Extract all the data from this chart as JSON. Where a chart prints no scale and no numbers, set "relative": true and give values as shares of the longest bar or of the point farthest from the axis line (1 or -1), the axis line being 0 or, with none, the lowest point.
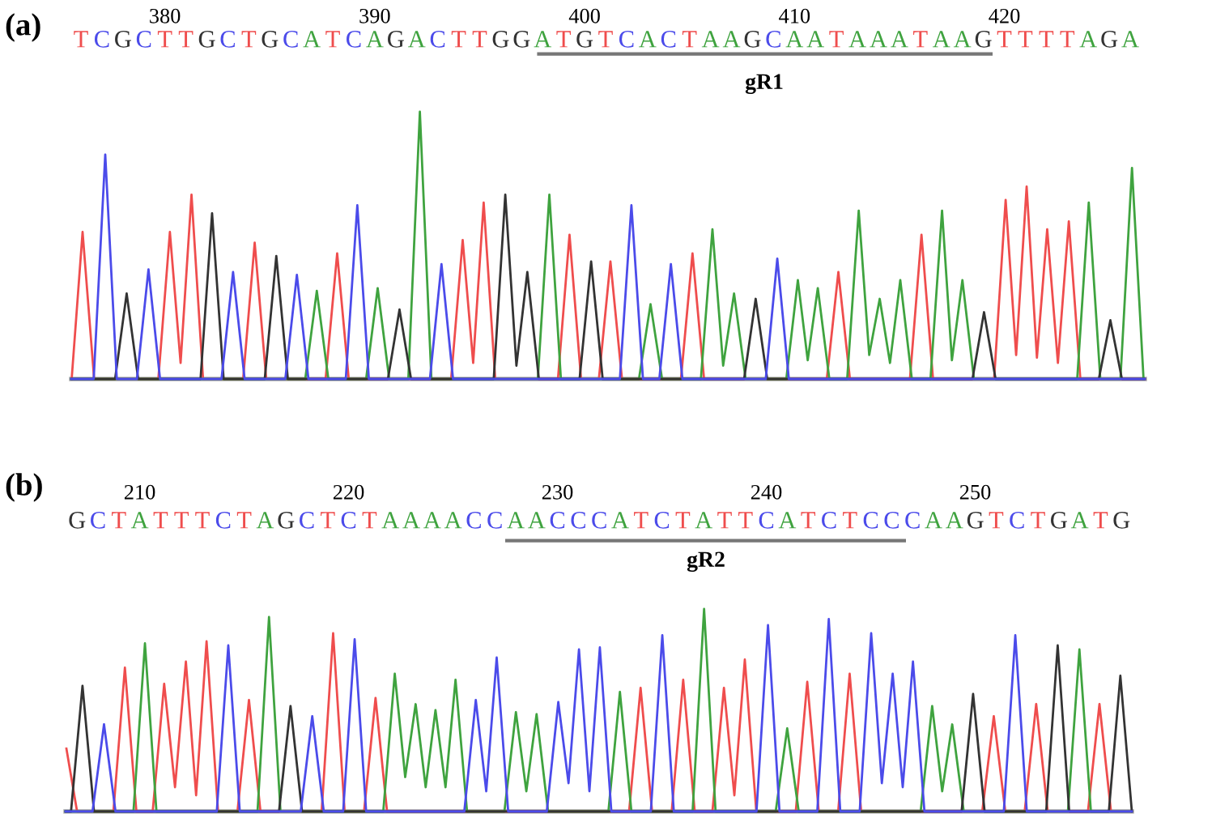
{
  "chart_data": [
    {
      "type": "line",
      "title": "(a)",
      "relative": true,
      "xlim": [
        375.54,
        426.69
      ],
      "xticks": [
        380,
        390,
        400,
        410,
        420
      ],
      "annotations": [
        "T",
        "C",
        "G",
        "C",
        "T",
        "T",
        "G",
        "C",
        "T",
        "G",
        "C",
        "A",
        "T",
        "C",
        "A",
        "G",
        "A",
        "C",
        "T",
        "T",
        "G",
        "G",
        "A",
        "T",
        "G",
        "T",
        "C",
        "A",
        "C",
        "T",
        "A",
        "A",
        "G",
        "C",
        "A",
        "A",
        "T",
        "A",
        "A",
        "A",
        "T",
        "A",
        "A",
        "G",
        "T",
        "T",
        "T",
        "T",
        "A",
        "G",
        "A",
        "gR1"
      ],
      "series": [
        {
          "color": "#ef4d4d",
          "x": [
            375.56,
            376.08,
            376.63,
            379.69,
            380.24,
            380.75,
            381.27,
            381.82,
            383.73,
            384.28,
            384.83,
            387.66,
            388.21,
            388.76,
            393.64,
            394.19,
            394.69,
            395.19,
            395.74,
            398.73,
            399.28,
            399.83,
            400.68,
            401.23,
            401.78,
            404.59,
            405.14,
            405.69,
            411.54,
            412.09,
            412.64,
            415.5,
            416.05,
            416.6,
            419.51,
            420.06,
            420.56,
            421.06,
            421.55,
            422.04,
            422.55,
            423.07,
            423.62,
            426.69
          ],
          "values": [
            0,
            0.55,
            0,
            0,
            0.55,
            0.06,
            0.69,
            0,
            0,
            0.51,
            0,
            0,
            0.47,
            0,
            0,
            0.52,
            0.06,
            0.66,
            0,
            0,
            0.54,
            0,
            0,
            0.44,
            0,
            0,
            0.47,
            0,
            0,
            0.4,
            0,
            0,
            0.54,
            0,
            0,
            0.67,
            0.09,
            0.72,
            0.08,
            0.56,
            0.06,
            0.59,
            0,
            0
          ]
        },
        {
          "color": "#3fa33f",
          "x": [
            375.54,
            386.69,
            387.24,
            387.79,
            389.59,
            390.14,
            390.69,
            391.6,
            392.15,
            392.7,
            397.77,
            398.32,
            398.87,
            402.59,
            403.14,
            403.69,
            405.54,
            406.09,
            406.6,
            407.12,
            407.67,
            409.61,
            410.16,
            410.63,
            411.11,
            411.66,
            412.51,
            413.06,
            413.56,
            414.06,
            414.55,
            415.04,
            415.59,
            416.48,
            417.03,
            417.5,
            418.0,
            418.55,
            423.47,
            424.02,
            424.57,
            425.53,
            426.08,
            426.63
          ],
          "values": [
            0,
            0,
            0.33,
            0,
            0,
            0.34,
            0,
            0,
            1,
            0,
            0,
            0.69,
            0,
            0,
            0.28,
            0,
            0,
            0.56,
            0.05,
            0.32,
            0,
            0,
            0.37,
            0.07,
            0.34,
            0,
            0,
            0.63,
            0.09,
            0.3,
            0.06,
            0.37,
            0,
            0,
            0.63,
            0.07,
            0.37,
            0,
            0,
            0.66,
            0,
            0,
            0.79,
            0
          ]
        },
        {
          "color": "#333333",
          "x": [
            375.54,
            377.63,
            378.18,
            378.73,
            381.7,
            382.25,
            382.8,
            384.76,
            385.31,
            385.86,
            390.63,
            391.18,
            391.73,
            395.67,
            396.22,
            396.75,
            397.27,
            397.82,
            399.76,
            400.31,
            400.86,
            407.6,
            408.15,
            408.7,
            418.48,
            419.03,
            419.58,
            424.5,
            425.05,
            425.6,
            426.69
          ],
          "values": [
            0,
            0,
            0.32,
            0,
            0,
            0.62,
            0,
            0,
            0.46,
            0,
            0,
            0.26,
            0,
            0,
            0.69,
            0.05,
            0.4,
            0,
            0,
            0.44,
            0,
            0,
            0.3,
            0,
            0,
            0.25,
            0,
            0,
            0.22,
            0,
            0
          ]
        },
        {
          "color": "#4b4bea",
          "x": [
            375.54,
            376.61,
            377.16,
            377.71,
            378.67,
            379.22,
            379.77,
            382.7,
            383.25,
            383.8,
            385.74,
            386.29,
            386.84,
            388.62,
            389.17,
            389.72,
            392.63,
            393.18,
            393.73,
            401.68,
            402.23,
            402.78,
            403.56,
            404.11,
            404.66,
            408.63,
            409.18,
            409.73,
            426.69
          ],
          "values": [
            0,
            0,
            0.84,
            0,
            0,
            0.41,
            0,
            0,
            0.4,
            0,
            0,
            0.39,
            0,
            0,
            0.65,
            0,
            0,
            0.43,
            0,
            0,
            0.65,
            0,
            0,
            0.43,
            0,
            0,
            0.45,
            0,
            0
          ]
        }
      ]
    },
    {
      "type": "line",
      "title": "(b)",
      "relative": true,
      "xlim": [
        206.45,
        257.5
      ],
      "xticks": [
        210,
        220,
        230,
        240,
        250
      ],
      "annotations": [
        "G",
        "C",
        "T",
        "A",
        "T",
        "T",
        "T",
        "C",
        "T",
        "A",
        "G",
        "C",
        "T",
        "C",
        "T",
        "A",
        "A",
        "A",
        "A",
        "C",
        "C",
        "A",
        "A",
        "C",
        "C",
        "C",
        "A",
        "T",
        "C",
        "T",
        "A",
        "T",
        "T",
        "C",
        "A",
        "T",
        "C",
        "T",
        "C",
        "C",
        "C",
        "A",
        "A",
        "G",
        "T",
        "C",
        "T",
        "G",
        "A",
        "T",
        "G",
        "gR2"
      ],
      "series": [
        {
          "color": "#ef4d4d",
          "x": [
            206.49,
            207.0,
            208.74,
            209.29,
            209.84,
            210.62,
            211.17,
            211.69,
            212.21,
            212.7,
            213.2,
            213.75,
            214.68,
            215.23,
            215.78,
            218.71,
            219.26,
            219.81,
            220.74,
            221.29,
            221.84,
            233.43,
            233.98,
            234.53,
            235.47,
            236.02,
            236.57,
            237.42,
            237.97,
            238.47,
            238.97,
            239.52,
            241.41,
            241.96,
            242.51,
            243.44,
            243.99,
            244.54,
            250.34,
            250.89,
            251.44,
            252.37,
            252.92,
            253.47,
            255.4,
            255.95,
            256.5,
            257.5
          ],
          "values": [
            0.31,
            0,
            0,
            0.71,
            0,
            0,
            0.63,
            0.12,
            0.74,
            0.08,
            0.84,
            0,
            0,
            0.55,
            0,
            0,
            0.88,
            0,
            0,
            0.56,
            0,
            0,
            0.61,
            0,
            0,
            0.65,
            0,
            0,
            0.61,
            0.08,
            0.75,
            0,
            0,
            0.64,
            0,
            0,
            0.68,
            0,
            0,
            0.47,
            0,
            0,
            0.53,
            0,
            0,
            0.53,
            0,
            0
          ]
        },
        {
          "color": "#3fa33f",
          "x": [
            206.45,
            209.7,
            210.25,
            210.8,
            215.64,
            216.19,
            216.74,
            221.66,
            222.21,
            222.71,
            223.21,
            223.69,
            224.16,
            224.64,
            225.12,
            225.67,
            227.46,
            228.01,
            228.51,
            229.0,
            229.55,
            232.44,
            232.99,
            233.54,
            236.47,
            237.02,
            237.57,
            240.45,
            241.0,
            241.55,
            247.39,
            247.94,
            248.42,
            248.9,
            249.45,
            254.44,
            254.99,
            255.54,
            257.5
          ],
          "values": [
            0,
            0,
            0.83,
            0,
            0,
            0.96,
            0,
            0,
            0.68,
            0.17,
            0.53,
            0.12,
            0.5,
            0.12,
            0.65,
            0,
            0,
            0.49,
            0.1,
            0.48,
            0,
            0,
            0.59,
            0,
            0,
            1,
            0,
            0,
            0.41,
            0,
            0,
            0.52,
            0.1,
            0.43,
            0,
            0,
            0.8,
            0,
            0
          ]
        },
        {
          "color": "#333333",
          "x": [
            206.45,
            206.71,
            207.26,
            207.81,
            216.67,
            217.22,
            217.77,
            249.35,
            249.9,
            250.45,
            253.4,
            253.95,
            254.5,
            256.4,
            256.95,
            257.5
          ],
          "values": [
            0,
            0,
            0.62,
            0,
            0,
            0.52,
            0,
            0,
            0.58,
            0,
            0,
            0.82,
            0,
            0,
            0.67,
            0
          ]
        },
        {
          "color": "#4b4bea",
          "x": [
            206.45,
            207.74,
            208.29,
            208.84,
            213.69,
            214.24,
            214.79,
            217.71,
            218.26,
            218.81,
            219.74,
            220.29,
            220.84,
            225.54,
            226.09,
            226.59,
            227.09,
            227.64,
            229.49,
            230.04,
            230.53,
            231.03,
            231.53,
            232.03,
            232.58,
            234.47,
            235.02,
            235.57,
            239.53,
            240.08,
            240.63,
            242.44,
            242.99,
            243.54,
            244.47,
            245.02,
            245.53,
            246.05,
            246.53,
            247.02,
            247.57,
            251.37,
            251.92,
            252.47,
            257.5
          ],
          "values": [
            0,
            0,
            0.43,
            0,
            0,
            0.82,
            0,
            0,
            0.47,
            0,
            0,
            0.85,
            0,
            0,
            0.55,
            0.1,
            0.76,
            0,
            0,
            0.54,
            0.14,
            0.8,
            0.1,
            0.81,
            0,
            0,
            0.87,
            0,
            0,
            0.92,
            0,
            0,
            0.95,
            0,
            0,
            0.88,
            0.14,
            0.68,
            0.12,
            0.74,
            0,
            0,
            0.87,
            0,
            0
          ]
        }
      ]
    }
  ]
}
